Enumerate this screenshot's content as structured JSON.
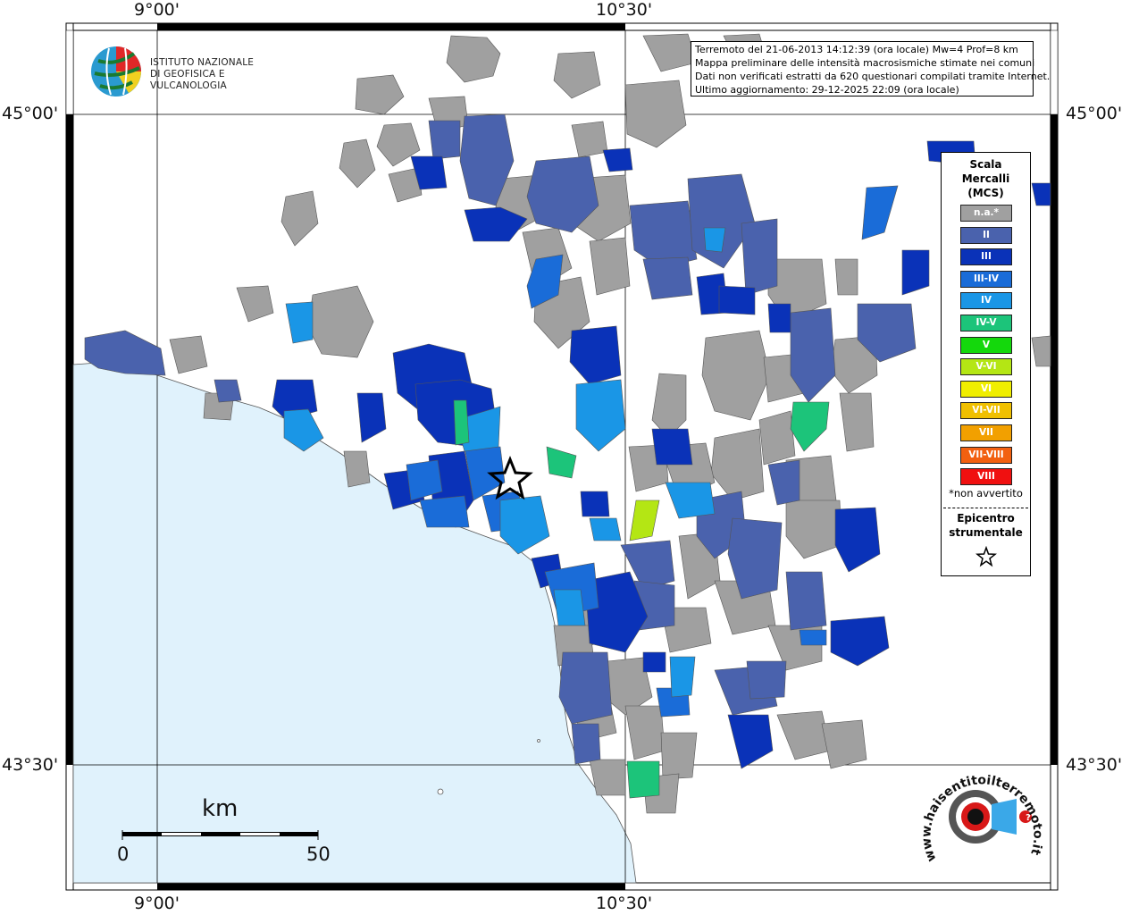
{
  "coords": {
    "lon_left": "9°00'",
    "lon_right": "10°30'",
    "lat_top": "45°00'",
    "lat_bottom": "43°30'"
  },
  "logo": {
    "line1": "ISTITUTO NAZIONALE",
    "line2": "DI GEOFISICA E VULCANOLOGIA"
  },
  "info": {
    "line1": "Terremoto del 21-06-2013 14:12:39 (ora locale) Mw=4 Prof=8 km",
    "line2": "Mappa preliminare delle intensità macrosismiche stimate nei comuni",
    "line3": "Dati non verificati estratti da 620 questionari compilati tramite Internet.",
    "line4": "Ultimo aggiornamento: 29-12-2025 22:09 (ora locale)"
  },
  "legend": {
    "title_line1": "Scala",
    "title_line2": "Mercalli",
    "title_line3": "(MCS)",
    "items": [
      {
        "label": "n.a.*",
        "color": "#a0a0a0"
      },
      {
        "label": "II",
        "color": "#4a62ad"
      },
      {
        "label": "III",
        "color": "#0a32b8"
      },
      {
        "label": "III-IV",
        "color": "#1a6cd8"
      },
      {
        "label": "IV",
        "color": "#1a96e6"
      },
      {
        "label": "IV-V",
        "color": "#1cc47a"
      },
      {
        "label": "V",
        "color": "#14d80c"
      },
      {
        "label": "V-VI",
        "color": "#b4e614"
      },
      {
        "label": "VI",
        "color": "#f0ee00"
      },
      {
        "label": "VI-VII",
        "color": "#f0c000"
      },
      {
        "label": "VII",
        "color": "#f2a000"
      },
      {
        "label": "VII-VIII",
        "color": "#f26010"
      },
      {
        "label": "VIII",
        "color": "#f01010"
      }
    ],
    "note": "*non avvertito",
    "epi_line1": "Epicentro",
    "epi_line2": "strumentale"
  },
  "scale": {
    "unit": "km",
    "start": "0",
    "end": "50"
  },
  "colors": {
    "sea": "#e0f2fc",
    "na": "#a0a0a0",
    "ii": "#4a62ad",
    "iii": "#0a32b8",
    "iii_iv": "#1a6cd8",
    "iv": "#1a96e6",
    "iv_v": "#1cc47a",
    "v_vi": "#b4e614"
  },
  "badge": {
    "text": "www.haisentitoilterremoto.it"
  }
}
